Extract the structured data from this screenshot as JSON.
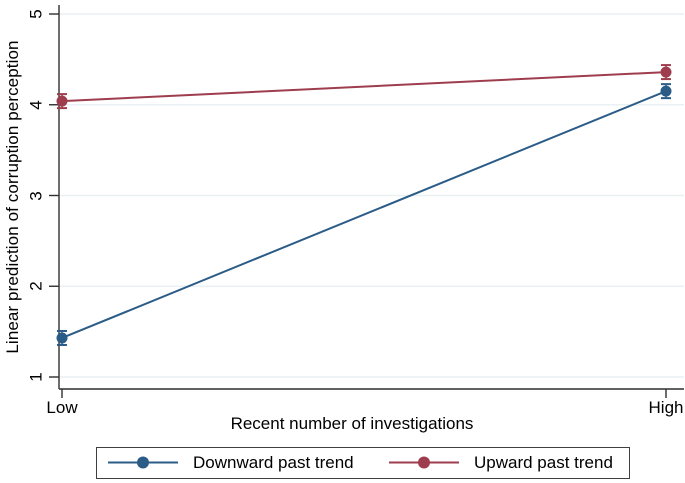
{
  "figure": {
    "background": "#ffffff"
  },
  "chart_data": {
    "type": "line",
    "title": "",
    "xlabel": "Recent number of investigations",
    "ylabel": "Linear prediction of corruption perception",
    "categories": [
      "Low",
      "High"
    ],
    "yticks": [
      1,
      2,
      3,
      4,
      5
    ],
    "ylim": [
      1,
      5
    ],
    "grid": "horizontal",
    "legend_position": "bottom-boxed",
    "series": [
      {
        "name": "Downward past trend",
        "color": "#2b5c87",
        "marker": "circle-with-ci-caps",
        "values": [
          1.43,
          4.15
        ]
      },
      {
        "name": "Upward past trend",
        "color": "#9e3d4d",
        "marker": "circle-with-ci-caps",
        "values": [
          4.04,
          4.36
        ]
      }
    ],
    "colors": {
      "gridline": "#e9f1f4",
      "axis": "#2f2f2f",
      "text": "#000000",
      "legend_border": "#3f3f3f"
    }
  }
}
